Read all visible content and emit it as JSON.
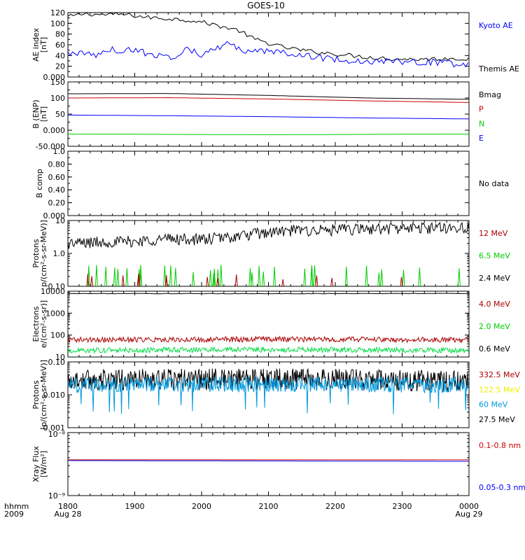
{
  "title": "GOES-10",
  "time_axis": {
    "corner_labels": [
      "hhmm",
      "2009"
    ],
    "ticks": [
      {
        "hhmm": "1800",
        "date": "Aug 28",
        "hour": 0
      },
      {
        "hhmm": "1900",
        "date": "",
        "hour": 1
      },
      {
        "hhmm": "2000",
        "date": "",
        "hour": 2
      },
      {
        "hhmm": "2100",
        "date": "",
        "hour": 3
      },
      {
        "hhmm": "2200",
        "date": "",
        "hour": 4
      },
      {
        "hhmm": "2300",
        "date": "",
        "hour": 5
      },
      {
        "hhmm": "0000",
        "date": "Aug 29",
        "hour": 6
      }
    ],
    "xlim": [
      0,
      6
    ]
  },
  "colors": {
    "black": "#000000",
    "blue": "#0000ff",
    "red": "#aa0000",
    "green": "#00cc00",
    "lightgreen": "#00dd44",
    "yellow": "#eeee00",
    "cyan": "#0099dd",
    "mag_red": "#cc0000"
  },
  "chart_data": [
    {
      "type": "line",
      "ylabel": [
        "AE index",
        "[nT]"
      ],
      "ylim": [
        0,
        120
      ],
      "scale": "linear",
      "yticks": [
        0,
        20,
        40,
        60,
        80,
        100,
        120
      ],
      "legend": [
        {
          "name": "Kyoto AE",
          "color": "blue"
        },
        {
          "name": "",
          "color": ""
        },
        {
          "name": "Themis AE",
          "color": "black"
        }
      ],
      "series": [
        {
          "name": "Themis AE",
          "color": "black",
          "noise": 2,
          "period": 0.04,
          "points": [
            [
              0,
              112
            ],
            [
              0.25,
              118
            ],
            [
              0.5,
              116
            ],
            [
              0.8,
              117
            ],
            [
              1.2,
              111
            ],
            [
              1.6,
              108
            ],
            [
              1.9,
              105
            ],
            [
              2.2,
              97
            ],
            [
              2.55,
              87
            ],
            [
              2.8,
              70
            ],
            [
              3.2,
              56
            ],
            [
              3.6,
              48
            ],
            [
              4.0,
              43
            ],
            [
              4.4,
              38
            ],
            [
              4.8,
              34
            ],
            [
              5.3,
              33
            ],
            [
              5.8,
              35
            ],
            [
              6.0,
              33
            ]
          ]
        },
        {
          "name": "Kyoto AE",
          "color": "blue",
          "noise": 3,
          "period": 0.035,
          "points": [
            [
              0,
              45
            ],
            [
              0.3,
              43
            ],
            [
              0.45,
              40
            ],
            [
              0.6,
              53
            ],
            [
              0.75,
              47
            ],
            [
              0.95,
              52
            ],
            [
              1.3,
              40
            ],
            [
              1.6,
              38
            ],
            [
              1.8,
              53
            ],
            [
              2.0,
              42
            ],
            [
              2.2,
              50
            ],
            [
              2.35,
              64
            ],
            [
              2.5,
              55
            ],
            [
              2.7,
              46
            ],
            [
              3.0,
              48
            ],
            [
              3.4,
              44
            ],
            [
              3.8,
              35
            ],
            [
              4.2,
              31
            ],
            [
              4.6,
              29
            ],
            [
              5.0,
              29
            ],
            [
              5.6,
              27
            ],
            [
              5.9,
              22
            ],
            [
              6.0,
              25
            ]
          ]
        }
      ]
    },
    {
      "type": "line",
      "ylabel": [
        "B (ENP)",
        "[nT]"
      ],
      "ylim": [
        -50,
        150
      ],
      "scale": "linear",
      "yticks": [
        -50,
        0,
        50,
        100,
        150
      ],
      "legend": [
        {
          "name": "Bmag",
          "color": "black"
        },
        {
          "name": "P",
          "color": "mag_red"
        },
        {
          "name": "N",
          "color": "green"
        },
        {
          "name": "E",
          "color": "blue"
        }
      ],
      "series": [
        {
          "name": "Bmag",
          "color": "black",
          "noise": 0,
          "points": [
            [
              0,
              113
            ],
            [
              1.5,
              114
            ],
            [
              3,
              108
            ],
            [
              4.5,
              100
            ],
            [
              6,
              96
            ]
          ]
        },
        {
          "name": "P",
          "color": "mag_red",
          "noise": 0,
          "points": [
            [
              0,
              100
            ],
            [
              1.5,
              101
            ],
            [
              3,
              97
            ],
            [
              4.5,
              91
            ],
            [
              6,
              86
            ]
          ]
        },
        {
          "name": "E",
          "color": "blue",
          "noise": 0,
          "points": [
            [
              0,
              47
            ],
            [
              1.5,
              45
            ],
            [
              3,
              42
            ],
            [
              4.5,
              38
            ],
            [
              6,
              35
            ]
          ]
        },
        {
          "name": "N",
          "color": "green",
          "noise": 0,
          "points": [
            [
              0,
              -12
            ],
            [
              1.5,
              -13
            ],
            [
              3,
              -14
            ],
            [
              4.5,
              -13
            ],
            [
              6,
              -12
            ]
          ]
        }
      ]
    },
    {
      "type": "line",
      "ylabel": [
        "B comp"
      ],
      "ylim": [
        0,
        1
      ],
      "scale": "linear",
      "yticks": [
        0.0,
        0.2,
        0.4,
        0.6,
        0.8,
        1.0
      ],
      "legend": [
        {
          "name": "No data",
          "color": "black"
        }
      ],
      "series": []
    },
    {
      "type": "line",
      "ylabel": [
        "Protons",
        "p/(cm²-s-sr-MeV)]"
      ],
      "ylim": [
        0.1,
        10
      ],
      "scale": "log",
      "yticks": [
        0.1,
        1.0,
        10.0
      ],
      "legend": [
        {
          "name": "12 MeV",
          "color": "red"
        },
        {
          "name": "6.5 MeV",
          "color": "green"
        },
        {
          "name": "2.4 MeV",
          "color": "black"
        }
      ],
      "series": [
        {
          "name": "2.4 MeV",
          "color": "black",
          "noise": 0.18,
          "log": true,
          "period": 0.015,
          "points": [
            [
              0,
              2.0
            ],
            [
              0.5,
              2.2
            ],
            [
              1,
              2.3
            ],
            [
              1.5,
              2.8
            ],
            [
              2,
              2.6
            ],
            [
              2.5,
              3.2
            ],
            [
              3,
              4.3
            ],
            [
              3.5,
              5.0
            ],
            [
              4,
              5.1
            ],
            [
              4.5,
              5.5
            ],
            [
              5,
              5.8
            ],
            [
              5.5,
              6.0
            ],
            [
              6,
              6.2
            ]
          ]
        },
        {
          "name": "6.5 MeV",
          "color": "green",
          "spikes": true,
          "base": 0.1,
          "peak": 0.45,
          "count": 34,
          "seed": 7
        },
        {
          "name": "12 MeV",
          "color": "red",
          "spikes": true,
          "base": 0.1,
          "peak": 0.25,
          "count": 14,
          "seed": 19
        }
      ]
    },
    {
      "type": "line",
      "ylabel": [
        "Electrons",
        "e/(cm²-s-sr)]"
      ],
      "ylim": [
        10,
        10000
      ],
      "scale": "log",
      "yticks": [
        10,
        100,
        1000,
        10000
      ],
      "legend": [
        {
          "name": "4.0 MeV",
          "color": "red"
        },
        {
          "name": "2.0 MeV",
          "color": "green"
        },
        {
          "name": "0.6 MeV",
          "color": "black"
        }
      ],
      "series": [
        {
          "name": "0.6 MeV",
          "color": "black",
          "noise": 0.01,
          "log": true,
          "period": 0.05,
          "points": [
            [
              0,
              7800
            ],
            [
              3,
              7700
            ],
            [
              6,
              7900
            ]
          ]
        },
        {
          "name": "4.0 MeV",
          "color": "red",
          "noise": 0.12,
          "log": true,
          "period": 0.012,
          "points": [
            [
              0,
              60
            ],
            [
              3,
              65
            ],
            [
              6,
              60
            ]
          ]
        },
        {
          "name": "2.0 MeV",
          "color": "lightgreen",
          "noise": 0.12,
          "log": true,
          "period": 0.012,
          "points": [
            [
              0,
              20
            ],
            [
              3,
              22
            ],
            [
              6,
              20
            ]
          ]
        }
      ]
    },
    {
      "type": "line",
      "ylabel": [
        "Protons",
        "[p/(cm²-s-sr-MeV)]"
      ],
      "ylim": [
        0.001,
        0.1
      ],
      "scale": "log",
      "yticks": [
        0.001,
        0.01,
        0.1
      ],
      "legend": [
        {
          "name": "332.5 MeV",
          "color": "red"
        },
        {
          "name": "122.5 MeV",
          "color": "yellow"
        },
        {
          "name": "60 MeV",
          "color": "cyan"
        },
        {
          "name": "27.5 MeV",
          "color": "black"
        }
      ],
      "series": [
        {
          "name": "27.5 MeV",
          "color": "black",
          "noise": 0.33,
          "log": true,
          "period": 0.009,
          "points": [
            [
              0,
              0.028
            ],
            [
              3,
              0.03
            ],
            [
              6,
              0.026
            ]
          ]
        },
        {
          "name": "60 MeV",
          "color": "cyan",
          "noise": 0.24,
          "log": true,
          "period": 0.009,
          "dips": true,
          "points": [
            [
              0,
              0.02
            ],
            [
              3,
              0.021
            ],
            [
              6,
              0.02
            ]
          ]
        }
      ]
    },
    {
      "type": "line",
      "ylabel": [
        "Xray  Flux",
        "[W/m²]"
      ],
      "ylim": [
        1e-09,
        1e-08
      ],
      "scale": "log",
      "ytick_labels": [
        "10⁻⁹",
        "10⁻⁸"
      ],
      "legend": [
        {
          "name": "0.1-0.8 nm",
          "color": "mag_red"
        },
        {
          "name": "0.05-0.3 nm",
          "color": "blue"
        }
      ],
      "series": [
        {
          "name": "0.1-0.8 nm",
          "color": "mag_red",
          "noise": 0,
          "log": true,
          "points": [
            [
              0,
              3.7e-09
            ],
            [
              6,
              3.7e-09
            ]
          ]
        },
        {
          "name": "0.05-0.3 nm",
          "color": "blue",
          "noise": 0,
          "log": true,
          "points": [
            [
              0,
              3.6e-09
            ],
            [
              6,
              3.5e-09
            ]
          ]
        }
      ]
    }
  ]
}
